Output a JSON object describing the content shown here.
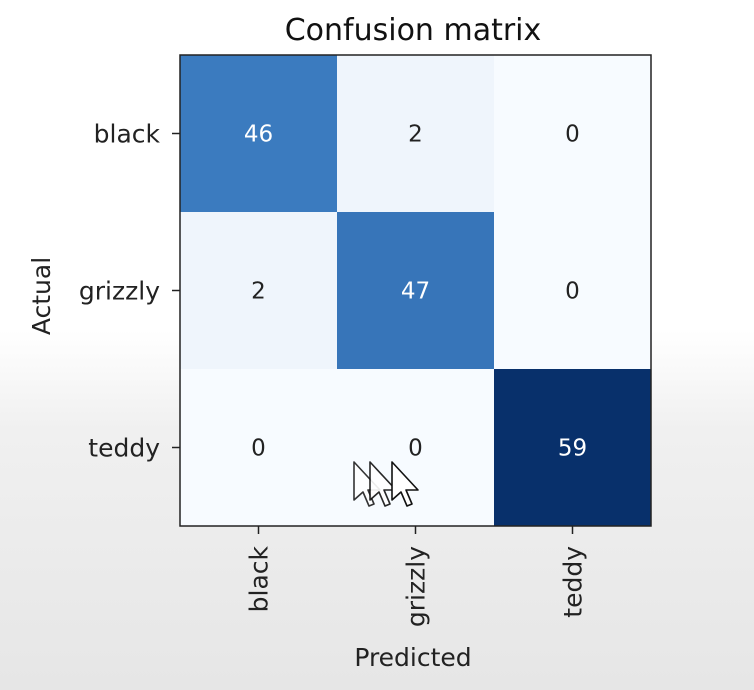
{
  "chart_data": {
    "type": "heatmap",
    "title": "Confusion matrix",
    "xlabel": "Predicted",
    "ylabel": "Actual",
    "x_categories": [
      "black",
      "grizzly",
      "teddy"
    ],
    "y_categories": [
      "black",
      "grizzly",
      "teddy"
    ],
    "values": [
      [
        46,
        2,
        0
      ],
      [
        2,
        47,
        0
      ],
      [
        0,
        0,
        59
      ]
    ],
    "colormap": "Blues",
    "colorbar": false,
    "grid": false
  },
  "colors": {
    "low": "#f7fbff",
    "mid": "#3b7bbf",
    "high": "#08306b",
    "text_dark": "#222222",
    "text_light": "#ffffff"
  },
  "icons": {
    "cursor": "mouse-pointer-icon"
  }
}
